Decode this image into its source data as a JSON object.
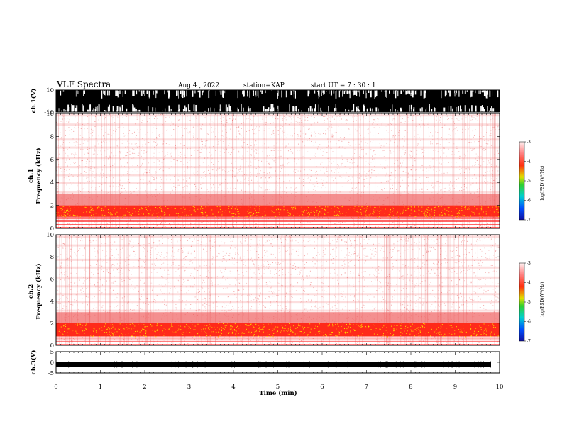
{
  "header": {
    "title": "VLF Spectra",
    "date": "Aug.4  , 2022",
    "station": "station=KAP",
    "start": "start  UT  =   7 : 30 : 1"
  },
  "chart_data": [
    {
      "type": "line",
      "panel": "ch1-waveform",
      "ylabel": "ch.1(V)",
      "ylim": [
        -10,
        10
      ],
      "yticks": [
        "10",
        "-10"
      ],
      "description_values": {
        "typical_amplitude_V": [
          -10,
          10
        ]
      }
    },
    {
      "type": "heatmap",
      "panel": "ch1-spectrogram",
      "ylabel": "ch.1\nFrequency  (kHz)",
      "ylabel_lines": [
        "ch.1",
        "Frequency  (kHz)"
      ],
      "ylim": [
        0,
        10
      ],
      "yticks": [
        "0",
        "2",
        "4",
        "6",
        "8",
        "10"
      ],
      "colorbar": {
        "label": "log(PSD)(V²/Hz)",
        "range": [
          -7,
          -3
        ],
        "ticks": [
          "-3",
          "-4",
          "-5",
          "-6",
          "-7"
        ]
      },
      "bands_kHz": [
        [
          1.0,
          2.0
        ],
        [
          2.0,
          3.0
        ]
      ]
    },
    {
      "type": "heatmap",
      "panel": "ch2-spectrogram",
      "ylabel_lines": [
        "ch.2",
        "Frequency  (kHz)"
      ],
      "ylim": [
        0,
        10
      ],
      "yticks": [
        "0",
        "2",
        "4",
        "6",
        "8",
        "10"
      ],
      "colorbar": {
        "label": "log(PSD)(V²/Hz)",
        "range": [
          -7,
          -3
        ],
        "ticks": [
          "-3",
          "-4",
          "-5",
          "-6",
          "-7"
        ]
      },
      "bands_kHz": [
        [
          0.8,
          2.0
        ],
        [
          2.0,
          3.0
        ]
      ]
    },
    {
      "type": "line",
      "panel": "ch3-waveform",
      "ylabel": "ch.3(V)",
      "ylim": [
        -5,
        5
      ],
      "yticks": [
        "5",
        "0",
        "-5"
      ],
      "baseline_V": -1
    }
  ],
  "xaxis": {
    "label": "Time  (min)",
    "xlim": [
      0,
      10
    ],
    "ticks": [
      "0",
      "1",
      "2",
      "3",
      "4",
      "5",
      "6",
      "7",
      "8",
      "9",
      "10"
    ]
  },
  "colors": {
    "background": "#ffffff",
    "bars": "#000000"
  }
}
